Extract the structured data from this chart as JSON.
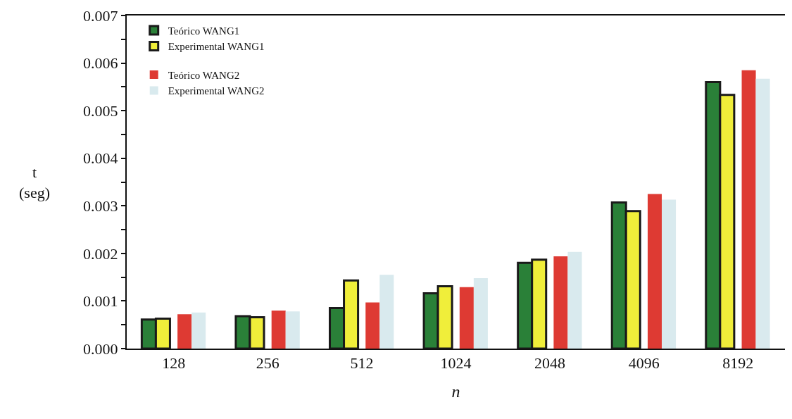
{
  "chart_data": {
    "type": "bar",
    "xlabel": "n",
    "ylabel": "t\n(seg)",
    "categories": [
      "128",
      "256",
      "512",
      "1024",
      "2048",
      "4096",
      "8192"
    ],
    "series": [
      {
        "name": "Teórico WANG1",
        "color": "#2a8038",
        "values": [
          0.00061,
          0.00068,
          0.00085,
          0.00116,
          0.0018,
          0.00307,
          0.0056
        ]
      },
      {
        "name": "Experimental WANG1",
        "color": "#f0ee3a",
        "values": [
          0.00063,
          0.00066,
          0.00143,
          0.00131,
          0.00187,
          0.00289,
          0.00533
        ]
      },
      {
        "name": "Teórico WANG2",
        "color": "#de3a33",
        "values": [
          0.00072,
          0.0008,
          0.00097,
          0.00129,
          0.00194,
          0.00325,
          0.00585
        ]
      },
      {
        "name": "Experimental WANG2",
        "color": "#d9eaee",
        "values": [
          0.00076,
          0.00078,
          0.00155,
          0.00148,
          0.00203,
          0.00313,
          0.00567
        ]
      }
    ],
    "ylim": [
      0,
      0.007
    ],
    "yticks": [
      {
        "value": 0,
        "label": "0.000"
      },
      {
        "value": 0.0005,
        "label": null
      },
      {
        "value": 0.001,
        "label": "0.001"
      },
      {
        "value": 0.0015,
        "label": null
      },
      {
        "value": 0.002,
        "label": "0.002"
      },
      {
        "value": 0.0025,
        "label": null
      },
      {
        "value": 0.003,
        "label": "0.003"
      },
      {
        "value": 0.0035,
        "label": null
      },
      {
        "value": 0.004,
        "label": "0.004"
      },
      {
        "value": 0.0045,
        "label": null
      },
      {
        "value": 0.005,
        "label": "0.005"
      },
      {
        "value": 0.0055,
        "label": null
      },
      {
        "value": 0.006,
        "label": "0.006"
      },
      {
        "value": 0.0065,
        "label": null
      },
      {
        "value": 0.007,
        "label": "0.007"
      }
    ],
    "legend": "top left"
  }
}
